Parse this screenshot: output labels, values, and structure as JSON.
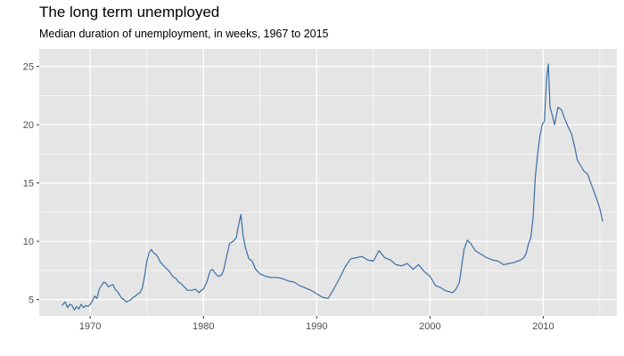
{
  "chart_data": {
    "type": "line",
    "title": "The long term unemployed",
    "subtitle": "Median duration of unemployment, in weeks, 1967 to 2015",
    "xlabel": "",
    "ylabel": "",
    "xlim": [
      1965.5,
      2016.5
    ],
    "ylim": [
      3.6,
      26.5
    ],
    "x_ticks": [
      1970,
      1980,
      1990,
      2000,
      2010
    ],
    "x_tick_labels": [
      "1970",
      "1980",
      "1990",
      "2000",
      "2010"
    ],
    "y_ticks": [
      5,
      10,
      15,
      20,
      25
    ],
    "y_tick_labels": [
      "5",
      "10",
      "15",
      "20",
      "25"
    ],
    "grid": true,
    "line_color": "#3b6ea5",
    "panel_color": "#e5e5e5",
    "grid_color": "#ffffff",
    "series": [
      {
        "x": [
          1967.5,
          1967.8,
          1968.0,
          1968.2,
          1968.4,
          1968.6,
          1968.8,
          1969.0,
          1969.2,
          1969.4,
          1969.6,
          1969.8,
          1970.0,
          1970.2,
          1970.4,
          1970.6,
          1970.8,
          1971.0,
          1971.2,
          1971.4,
          1971.6,
          1971.8,
          1972.0,
          1972.2,
          1972.4,
          1972.6,
          1972.8,
          1973.0,
          1973.2,
          1973.4,
          1973.6,
          1973.8,
          1974.0,
          1974.2,
          1974.4,
          1974.6,
          1974.8,
          1975.0,
          1975.2,
          1975.4,
          1975.6,
          1975.8,
          1976.0,
          1976.2,
          1976.4,
          1976.6,
          1976.8,
          1977.0,
          1977.2,
          1977.4,
          1977.6,
          1977.8,
          1978.0,
          1978.3,
          1978.6,
          1979.0,
          1979.3,
          1979.6,
          1979.8,
          1980.0,
          1980.3,
          1980.6,
          1980.8,
          1981.0,
          1981.3,
          1981.6,
          1981.8,
          1982.0,
          1982.3,
          1982.6,
          1982.9,
          1983.1,
          1983.3,
          1983.5,
          1983.7,
          1984.0,
          1984.3,
          1984.6,
          1985.0,
          1985.5,
          1986.0,
          1986.5,
          1987.0,
          1987.5,
          1988.0,
          1988.5,
          1989.0,
          1989.5,
          1990.0,
          1990.5,
          1991.0,
          1991.5,
          1992.0,
          1992.5,
          1993.0,
          1993.5,
          1994.0,
          1994.5,
          1995.0,
          1995.5,
          1996.0,
          1996.5,
          1997.0,
          1997.5,
          1998.0,
          1998.5,
          1999.0,
          1999.5,
          2000.0,
          2000.5,
          2001.0,
          2001.3,
          2001.6,
          2002.0,
          2002.3,
          2002.6,
          2003.0,
          2003.3,
          2003.6,
          2004.0,
          2004.5,
          2005.0,
          2005.5,
          2006.0,
          2006.5,
          2007.0,
          2007.5,
          2008.0,
          2008.3,
          2008.5,
          2008.7,
          2008.9,
          2009.1,
          2009.3,
          2009.5,
          2009.7,
          2009.9,
          2010.1,
          2010.3,
          2010.45,
          2010.6,
          2010.8,
          2011.0,
          2011.3,
          2011.6,
          2011.9,
          2012.2,
          2012.5,
          2012.8,
          2013.0,
          2013.3,
          2013.6,
          2013.9,
          2014.2,
          2014.5,
          2014.8,
          2015.0,
          2015.25
        ],
        "y": [
          4.5,
          4.8,
          4.3,
          4.6,
          4.5,
          4.1,
          4.4,
          4.2,
          4.6,
          4.3,
          4.5,
          4.4,
          4.6,
          4.9,
          5.3,
          5.1,
          5.9,
          6.2,
          6.5,
          6.4,
          6.1,
          6.2,
          6.3,
          5.9,
          5.7,
          5.4,
          5.1,
          5.0,
          4.8,
          4.9,
          5.0,
          5.2,
          5.3,
          5.5,
          5.6,
          6.0,
          7.0,
          8.3,
          9.0,
          9.3,
          9.0,
          8.9,
          8.6,
          8.2,
          8.0,
          7.8,
          7.6,
          7.4,
          7.1,
          6.9,
          6.8,
          6.5,
          6.4,
          6.1,
          5.8,
          5.8,
          5.9,
          5.6,
          5.8,
          5.9,
          6.5,
          7.5,
          7.6,
          7.3,
          7.0,
          7.1,
          7.6,
          8.5,
          9.8,
          10.0,
          10.3,
          11.4,
          12.3,
          10.5,
          9.5,
          8.5,
          8.3,
          7.6,
          7.2,
          7.0,
          6.9,
          6.9,
          6.8,
          6.6,
          6.5,
          6.2,
          6.0,
          5.8,
          5.5,
          5.2,
          5.1,
          5.9,
          6.8,
          7.8,
          8.5,
          8.6,
          8.7,
          8.4,
          8.3,
          9.2,
          8.6,
          8.4,
          8.0,
          7.9,
          8.1,
          7.6,
          8.0,
          7.4,
          7.0,
          6.2,
          6.0,
          5.8,
          5.7,
          5.6,
          5.9,
          6.5,
          9.3,
          10.1,
          9.8,
          9.2,
          8.9,
          8.6,
          8.4,
          8.3,
          8.0,
          8.1,
          8.2,
          8.4,
          8.6,
          9.0,
          9.8,
          10.3,
          12.0,
          15.5,
          17.5,
          19.0,
          20.0,
          20.3,
          24.0,
          25.2,
          21.5,
          20.8,
          20.0,
          21.5,
          21.3,
          20.5,
          19.8,
          19.2,
          18.0,
          17.0,
          16.5,
          16.0,
          15.8,
          15.0,
          14.2,
          13.4,
          12.8,
          11.7
        ]
      }
    ]
  }
}
